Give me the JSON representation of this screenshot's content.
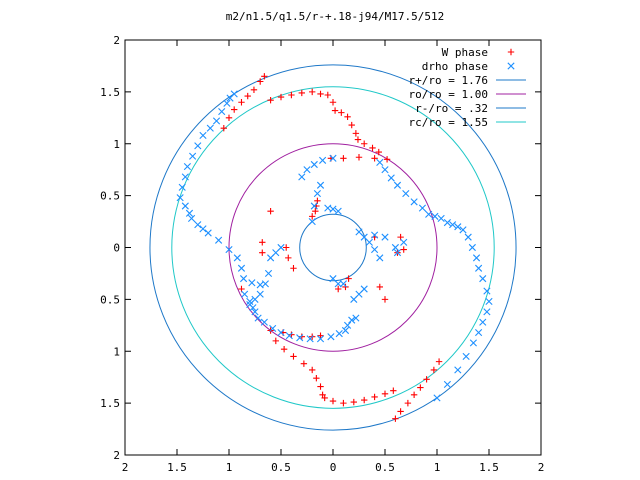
{
  "chart_data": {
    "type": "scatter",
    "title": "m2/n1.5/q1.5/r-+.18-j94/M17.5/512",
    "xlim": [
      -2,
      2
    ],
    "ylim": [
      -2,
      2
    ],
    "x_ticks": [
      {
        "value": -2,
        "label": "2"
      },
      {
        "value": -1.5,
        "label": "1.5"
      },
      {
        "value": -1,
        "label": "1"
      },
      {
        "value": -0.5,
        "label": "0.5"
      },
      {
        "value": 0,
        "label": "0"
      },
      {
        "value": 0.5,
        "label": "0.5"
      },
      {
        "value": 1,
        "label": "1"
      },
      {
        "value": 1.5,
        "label": "1.5"
      },
      {
        "value": 2,
        "label": "2"
      }
    ],
    "y_ticks": [
      {
        "value": 2,
        "label": "2"
      },
      {
        "value": 1.5,
        "label": "1.5"
      },
      {
        "value": 1,
        "label": "1"
      },
      {
        "value": 0.5,
        "label": "0.5"
      },
      {
        "value": 0,
        "label": "0"
      },
      {
        "value": -0.5,
        "label": "0.5"
      },
      {
        "value": -1,
        "label": "1"
      },
      {
        "value": -1.5,
        "label": "1.5"
      },
      {
        "value": -2,
        "label": "2"
      }
    ],
    "grid": false,
    "legend_position": "top-right",
    "series": [
      {
        "name": "W phase",
        "marker": "plus",
        "color": "#ff0000",
        "points": [
          [
            -1.05,
            1.15
          ],
          [
            -1.0,
            1.25
          ],
          [
            -0.95,
            1.33
          ],
          [
            -0.88,
            1.4
          ],
          [
            -0.82,
            1.46
          ],
          [
            -0.76,
            1.52
          ],
          [
            -0.7,
            1.6
          ],
          [
            -0.66,
            1.65
          ],
          [
            -0.6,
            1.42
          ],
          [
            -0.5,
            1.45
          ],
          [
            -0.4,
            1.47
          ],
          [
            -0.3,
            1.49
          ],
          [
            -0.2,
            1.5
          ],
          [
            -0.12,
            1.48
          ],
          [
            -0.05,
            1.47
          ],
          [
            0.0,
            1.4
          ],
          [
            0.02,
            1.32
          ],
          [
            0.08,
            1.3
          ],
          [
            0.14,
            1.26
          ],
          [
            0.18,
            1.18
          ],
          [
            0.22,
            1.1
          ],
          [
            0.24,
            1.04
          ],
          [
            0.3,
            1.0
          ],
          [
            0.38,
            0.96
          ],
          [
            0.44,
            0.92
          ],
          [
            0.52,
            0.85
          ],
          [
            0.4,
            0.86
          ],
          [
            0.25,
            0.87
          ],
          [
            0.1,
            0.86
          ],
          [
            -0.02,
            0.86
          ],
          [
            -0.6,
            -0.8
          ],
          [
            -0.55,
            -0.9
          ],
          [
            -0.47,
            -0.98
          ],
          [
            -0.38,
            -1.05
          ],
          [
            -0.28,
            -1.12
          ],
          [
            -0.2,
            -1.18
          ],
          [
            -0.16,
            -1.26
          ],
          [
            -0.12,
            -1.34
          ],
          [
            -0.1,
            -1.42
          ],
          [
            -0.08,
            -1.45
          ],
          [
            0.0,
            -1.48
          ],
          [
            0.1,
            -1.5
          ],
          [
            0.2,
            -1.49
          ],
          [
            0.3,
            -1.47
          ],
          [
            0.4,
            -1.44
          ],
          [
            0.5,
            -1.41
          ],
          [
            0.58,
            -1.38
          ],
          [
            0.6,
            -1.65
          ],
          [
            0.65,
            -1.58
          ],
          [
            0.72,
            -1.5
          ],
          [
            0.78,
            -1.42
          ],
          [
            0.84,
            -1.35
          ],
          [
            0.9,
            -1.27
          ],
          [
            0.97,
            -1.18
          ],
          [
            1.02,
            -1.1
          ],
          [
            -0.48,
            -0.82
          ],
          [
            -0.4,
            -0.84
          ],
          [
            -0.3,
            -0.86
          ],
          [
            -0.2,
            -0.86
          ],
          [
            -0.12,
            -0.85
          ],
          [
            -0.6,
            0.35
          ],
          [
            -0.68,
            0.05
          ],
          [
            -0.68,
            -0.05
          ],
          [
            -0.88,
            -0.4
          ],
          [
            -0.45,
            0.0
          ],
          [
            -0.43,
            -0.1
          ],
          [
            -0.38,
            -0.2
          ],
          [
            -0.2,
            0.3
          ],
          [
            -0.17,
            0.35
          ],
          [
            -0.16,
            0.4
          ],
          [
            -0.15,
            0.45
          ],
          [
            0.15,
            -0.3
          ],
          [
            0.05,
            -0.4
          ],
          [
            0.12,
            -0.38
          ],
          [
            0.45,
            -0.38
          ],
          [
            0.5,
            -0.5
          ],
          [
            0.65,
            0.1
          ],
          [
            0.62,
            -0.05
          ],
          [
            0.68,
            -0.02
          ],
          [
            0.4,
            0.1
          ]
        ]
      },
      {
        "name": "drho phase",
        "marker": "cross",
        "color": "#1e90ff",
        "points": [
          [
            -0.95,
            1.48
          ],
          [
            -0.99,
            1.44
          ],
          [
            -1.02,
            1.39
          ],
          [
            -1.07,
            1.31
          ],
          [
            -1.12,
            1.22
          ],
          [
            -1.18,
            1.15
          ],
          [
            -1.25,
            1.08
          ],
          [
            -1.3,
            0.98
          ],
          [
            -1.35,
            0.88
          ],
          [
            -1.4,
            0.78
          ],
          [
            -1.42,
            0.68
          ],
          [
            -1.45,
            0.58
          ],
          [
            -1.47,
            0.48
          ],
          [
            -1.42,
            0.4
          ],
          [
            -1.38,
            0.33
          ],
          [
            -1.36,
            0.28
          ],
          [
            -1.3,
            0.22
          ],
          [
            -1.25,
            0.18
          ],
          [
            -1.2,
            0.14
          ],
          [
            -1.1,
            0.07
          ],
          [
            -1.0,
            -0.02
          ],
          [
            -0.92,
            -0.1
          ],
          [
            -0.88,
            -0.2
          ],
          [
            -0.86,
            -0.3
          ],
          [
            -0.78,
            -0.34
          ],
          [
            -0.7,
            -0.36
          ],
          [
            -0.85,
            -0.45
          ],
          [
            -0.8,
            -0.52
          ],
          [
            -0.77,
            -0.58
          ],
          [
            -0.75,
            -0.62
          ],
          [
            -0.72,
            -0.68
          ],
          [
            -0.66,
            -0.72
          ],
          [
            -0.58,
            -0.78
          ],
          [
            -0.5,
            -0.82
          ],
          [
            -0.42,
            -0.85
          ],
          [
            -0.32,
            -0.87
          ],
          [
            -0.22,
            -0.88
          ],
          [
            -0.12,
            -0.88
          ],
          [
            -0.02,
            -0.86
          ],
          [
            0.06,
            -0.83
          ],
          [
            0.12,
            -0.8
          ],
          [
            0.14,
            -0.75
          ],
          [
            0.18,
            -0.7
          ],
          [
            0.22,
            -0.68
          ],
          [
            0.45,
            0.82
          ],
          [
            0.5,
            0.75
          ],
          [
            0.56,
            0.67
          ],
          [
            0.62,
            0.6
          ],
          [
            0.7,
            0.52
          ],
          [
            0.78,
            0.44
          ],
          [
            0.86,
            0.38
          ],
          [
            0.92,
            0.32
          ],
          [
            0.98,
            0.3
          ],
          [
            1.04,
            0.28
          ],
          [
            1.1,
            0.24
          ],
          [
            1.15,
            0.22
          ],
          [
            1.2,
            0.2
          ],
          [
            1.25,
            0.17
          ],
          [
            1.3,
            0.1
          ],
          [
            1.34,
            0.0
          ],
          [
            1.38,
            -0.1
          ],
          [
            1.4,
            -0.2
          ],
          [
            1.44,
            -0.3
          ],
          [
            1.48,
            -0.42
          ],
          [
            1.5,
            -0.52
          ],
          [
            1.48,
            -0.62
          ],
          [
            1.44,
            -0.72
          ],
          [
            1.4,
            -0.82
          ],
          [
            1.35,
            -0.92
          ],
          [
            1.28,
            -1.05
          ],
          [
            1.2,
            -1.18
          ],
          [
            1.1,
            -1.32
          ],
          [
            1.0,
            -1.45
          ],
          [
            -0.3,
            0.68
          ],
          [
            -0.25,
            0.75
          ],
          [
            -0.18,
            0.8
          ],
          [
            -0.1,
            0.84
          ],
          [
            0.0,
            0.86
          ],
          [
            -0.2,
            0.25
          ],
          [
            -0.18,
            0.4
          ],
          [
            -0.15,
            0.52
          ],
          [
            -0.12,
            0.6
          ],
          [
            0.05,
            0.35
          ],
          [
            0.0,
            0.37
          ],
          [
            -0.05,
            0.38
          ],
          [
            -0.8,
            -0.55
          ],
          [
            -0.75,
            -0.5
          ],
          [
            -0.7,
            -0.45
          ],
          [
            -0.65,
            -0.35
          ],
          [
            -0.62,
            -0.25
          ],
          [
            -0.6,
            -0.1
          ],
          [
            -0.55,
            -0.05
          ],
          [
            -0.5,
            0.0
          ],
          [
            0.45,
            -0.1
          ],
          [
            0.4,
            -0.02
          ],
          [
            0.35,
            0.05
          ],
          [
            0.3,
            0.1
          ],
          [
            0.25,
            0.15
          ],
          [
            0.4,
            0.12
          ],
          [
            0.5,
            0.1
          ],
          [
            0.6,
            0.0
          ],
          [
            0.62,
            -0.05
          ],
          [
            0.68,
            0.05
          ],
          [
            0.3,
            -0.4
          ],
          [
            0.25,
            -0.45
          ],
          [
            0.2,
            -0.5
          ],
          [
            0.0,
            -0.3
          ],
          [
            0.05,
            -0.35
          ],
          [
            0.1,
            -0.35
          ]
        ]
      }
    ],
    "circles": [
      {
        "name": "r+/ro = 1.76",
        "radius": 1.76,
        "color": "#1e78c8"
      },
      {
        "name": "ro/ro = 1.00",
        "radius": 1.0,
        "color": "#a020a0"
      },
      {
        "name": "r-/ro = .32",
        "radius": 0.32,
        "color": "#1e78c8"
      },
      {
        "name": "rc/ro = 1.55",
        "radius": 1.55,
        "color": "#20c8c8"
      }
    ]
  }
}
